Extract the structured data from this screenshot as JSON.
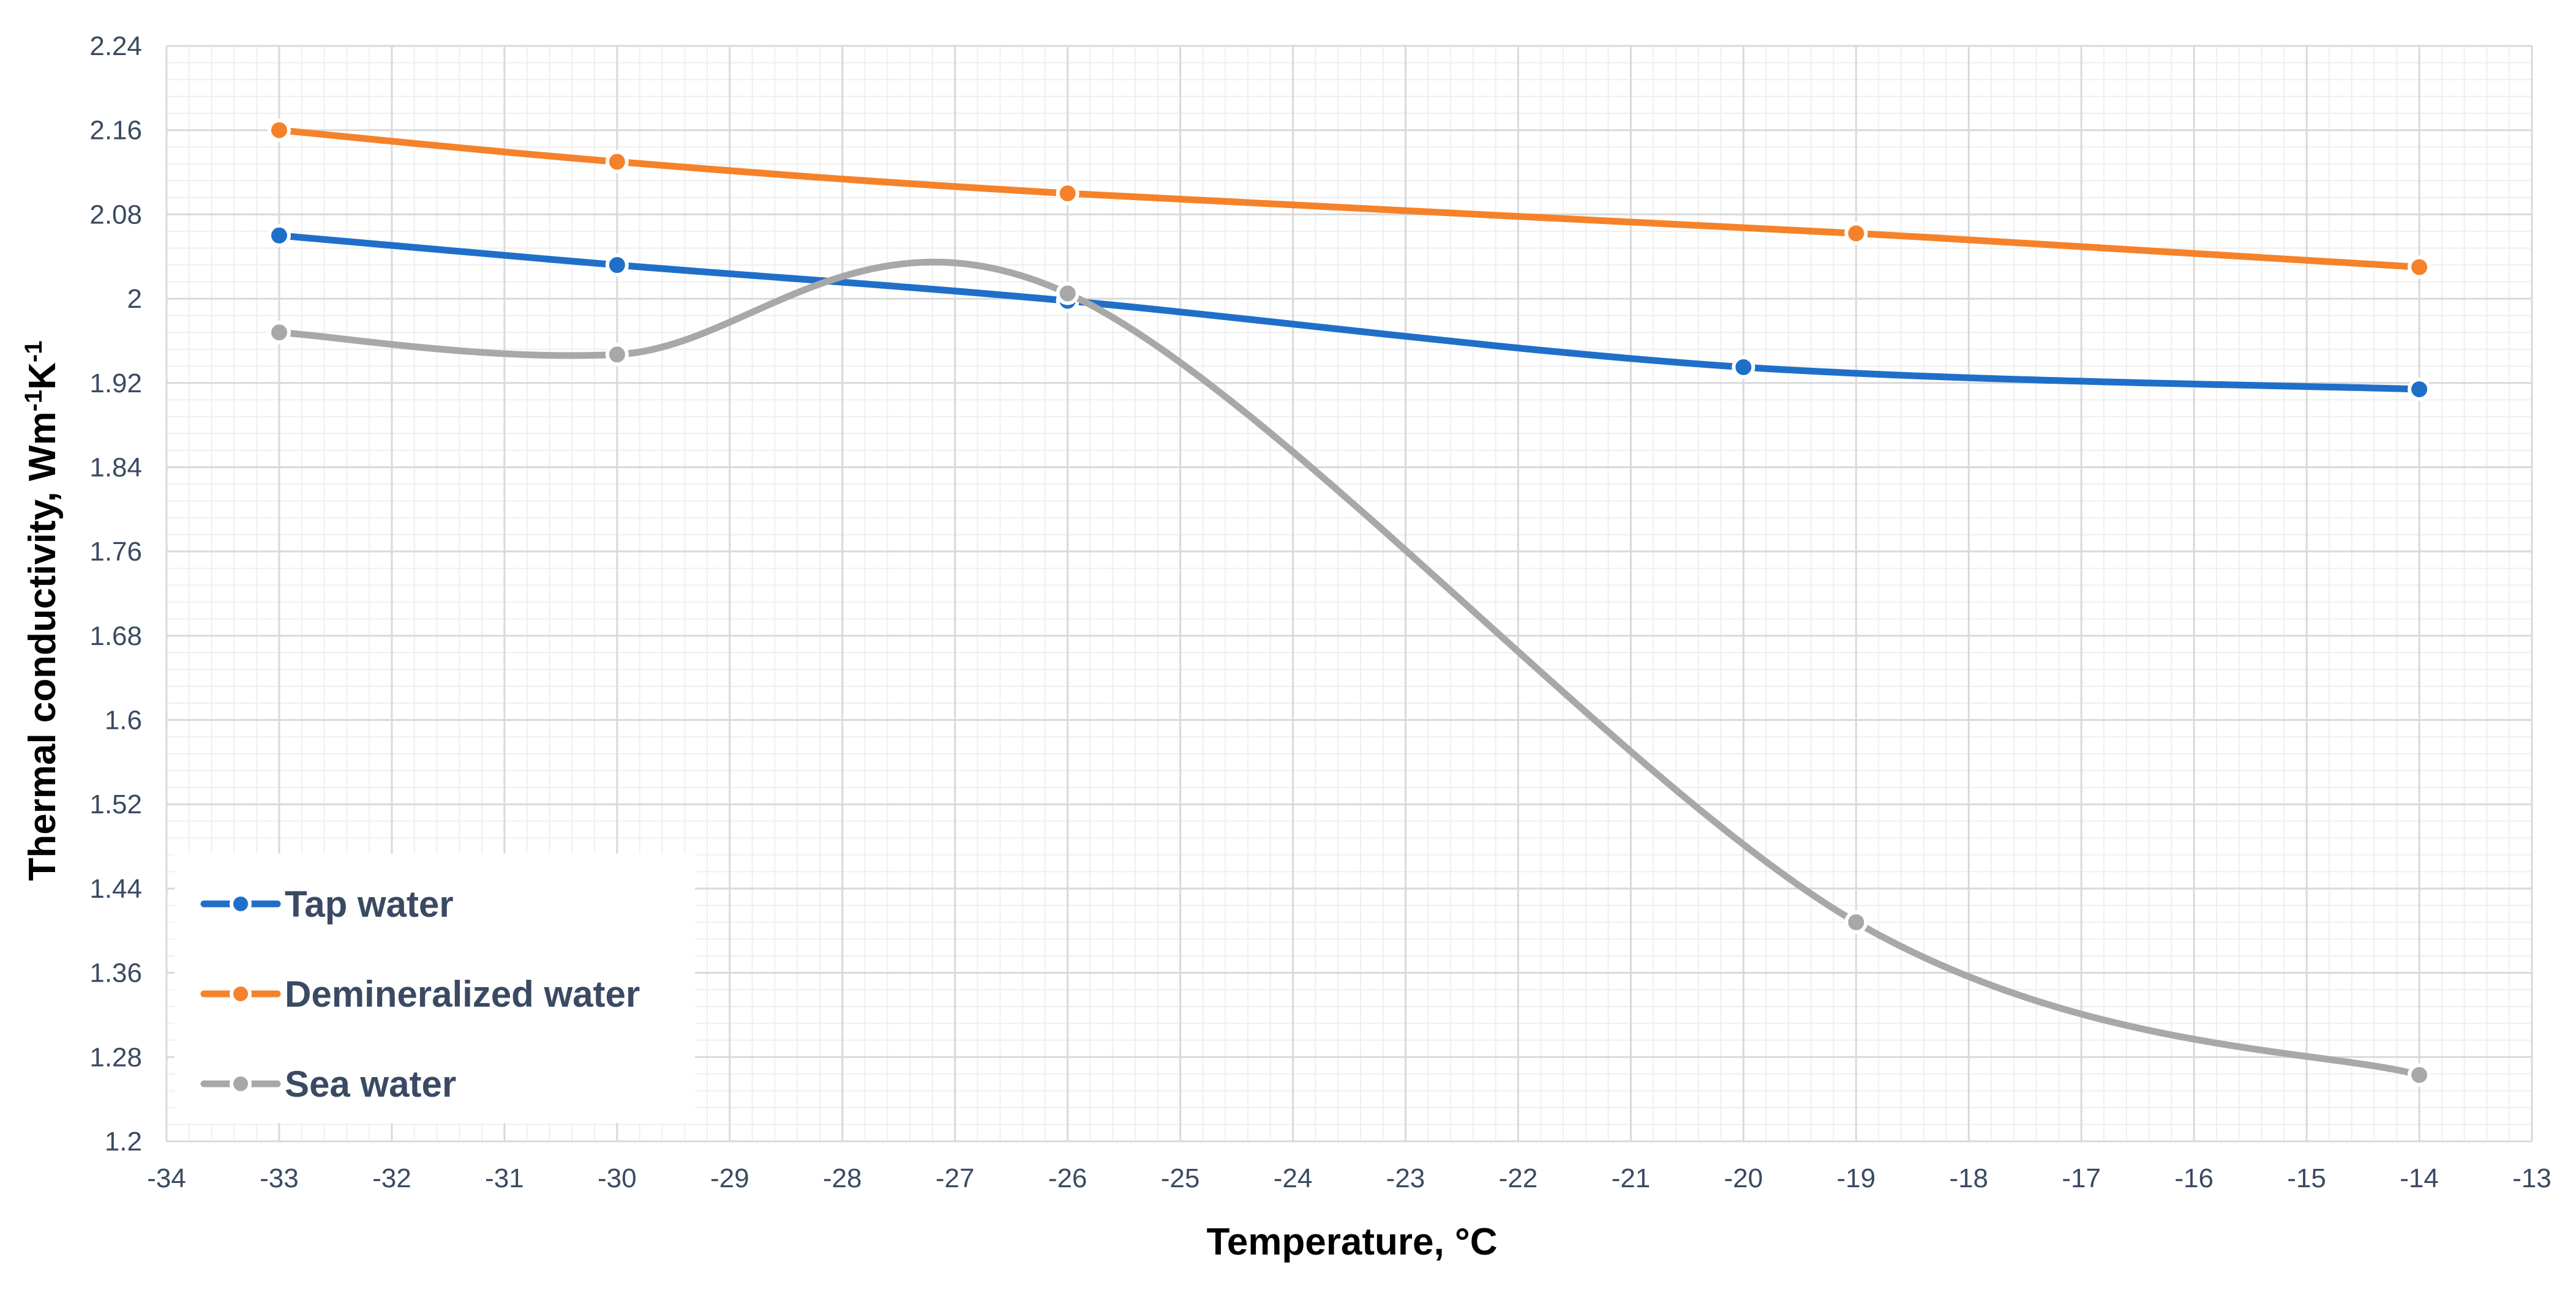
{
  "chart_data": {
    "type": "line",
    "title": "",
    "xlabel": "Temperature, °C",
    "ylabel": {
      "base": "Thermal conductivity, Wm",
      "sup1": "-1",
      "mid": "K",
      "sup2": "-1"
    },
    "xlim": [
      -34,
      -13
    ],
    "ylim": [
      1.2,
      2.24
    ],
    "x_ticks": [
      "-34",
      "-33",
      "-32",
      "-31",
      "-30",
      "-29",
      "-28",
      "-27",
      "-26",
      "-25",
      "-24",
      "-23",
      "-22",
      "-21",
      "-20",
      "-19",
      "-18",
      "-17",
      "-16",
      "-15",
      "-14",
      "-13"
    ],
    "y_ticks": [
      "1.2",
      "1.28",
      "1.36",
      "1.44",
      "1.52",
      "1.6",
      "1.68",
      "1.76",
      "1.84",
      "1.92",
      "2",
      "2.08",
      "2.16",
      "2.24"
    ],
    "grid": true,
    "smooth": true,
    "legend_position": "bottom-left",
    "series": [
      {
        "name": "Tap water",
        "color": "#1f6fc9",
        "points": [
          [
            -33,
            2.06
          ],
          [
            -30,
            2.032
          ],
          [
            -26,
            1.998
          ],
          [
            -20,
            1.935
          ],
          [
            -14,
            1.914
          ]
        ]
      },
      {
        "name": "Demineralized water",
        "color": "#f5822a",
        "points": [
          [
            -33,
            2.16
          ],
          [
            -30,
            2.13
          ],
          [
            -26,
            2.1
          ],
          [
            -19,
            2.062
          ],
          [
            -14,
            2.03
          ]
        ]
      },
      {
        "name": "Sea water",
        "color": "#a8a8a8",
        "points": [
          [
            -33,
            1.968
          ],
          [
            -30,
            1.947
          ],
          [
            -26,
            2.005
          ],
          [
            -19,
            1.408
          ],
          [
            -14,
            1.263
          ]
        ]
      }
    ]
  }
}
